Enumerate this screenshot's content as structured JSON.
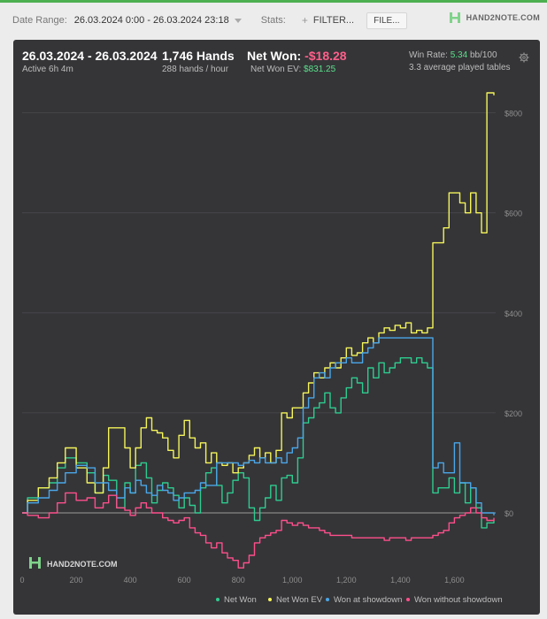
{
  "toolbar": {
    "date_label": "Date Range:",
    "date_value": "26.03.2024 0:00 - 26.03.2024 23:18",
    "stats_label": "Stats:",
    "filter_label": "FILTER...",
    "file_label": "FILE...",
    "brand_name": "HAND2NOTE.COM"
  },
  "summary": {
    "period": "26.03.2024 - 26.03.2024",
    "active": "Active 6h 4m",
    "hands": "1,746 Hands",
    "hands_rate": "288 hands / hour",
    "net_won_label": "Net Won:",
    "net_won_value": "-$18.28",
    "ev_label": "Net Won  EV:",
    "ev_value": "$831.25",
    "winrate_label": "Win Rate:",
    "winrate_value": "5.34",
    "winrate_unit": "bb/100",
    "tables": "3.3 average played tables"
  },
  "watermark": "HAND2NOTE.COM",
  "colors": {
    "accent": "#4caf50",
    "panel": "#353538",
    "net_won": "#2ecc8f",
    "net_won_ev": "#f4f45a",
    "showdown": "#4aa6e8",
    "non_showdown": "#ff4f8b",
    "negative": "#ff5f8a",
    "positive": "#5ae08a"
  },
  "chart_data": {
    "type": "line",
    "title": "",
    "xlabel": "",
    "ylabel": "",
    "xlim": [
      0,
      1746
    ],
    "ylim": [
      -115,
      840
    ],
    "x_ticks": [
      0,
      200,
      400,
      600,
      800,
      1000,
      1200,
      1400,
      1600
    ],
    "x_tick_labels": [
      "0",
      "200",
      "400",
      "600",
      "800",
      "1,000",
      "1,200",
      "1,400",
      "1,600"
    ],
    "y_ticks": [
      0,
      200,
      400,
      600,
      800
    ],
    "y_tick_labels": [
      "$0",
      "$200",
      "$400",
      "$600",
      "$800"
    ],
    "grid": true,
    "legend_position": "bottom",
    "series": [
      {
        "name": "Net Won",
        "color": "#2ecc8f",
        "x": [
          0,
          20,
          60,
          100,
          130,
          160,
          200,
          240,
          270,
          300,
          320,
          350,
          380,
          400,
          420,
          440,
          460,
          480,
          500,
          520,
          540,
          560,
          580,
          600,
          620,
          640,
          660,
          680,
          700,
          720,
          740,
          760,
          780,
          800,
          820,
          840,
          860,
          880,
          900,
          920,
          940,
          960,
          980,
          1000,
          1020,
          1040,
          1060,
          1080,
          1100,
          1120,
          1140,
          1160,
          1180,
          1200,
          1220,
          1240,
          1260,
          1280,
          1300,
          1320,
          1340,
          1360,
          1380,
          1400,
          1420,
          1440,
          1460,
          1480,
          1500,
          1520,
          1540,
          1560,
          1580,
          1600,
          1620,
          1640,
          1660,
          1680,
          1700,
          1720,
          1746
        ],
        "y": [
          0,
          30,
          50,
          60,
          90,
          110,
          100,
          80,
          40,
          75,
          65,
          10,
          60,
          40,
          95,
          100,
          70,
          20,
          45,
          60,
          50,
          35,
          10,
          30,
          15,
          0,
          50,
          80,
          90,
          55,
          20,
          40,
          65,
          80,
          70,
          10,
          -15,
          10,
          30,
          55,
          25,
          70,
          75,
          60,
          110,
          180,
          190,
          210,
          220,
          240,
          210,
          200,
          230,
          250,
          270,
          260,
          240,
          290,
          270,
          300,
          280,
          290,
          300,
          310,
          310,
          300,
          310,
          300,
          290,
          40,
          50,
          50,
          70,
          40,
          60,
          20,
          50,
          10,
          -30,
          -20,
          -15
        ]
      },
      {
        "name": "Net Won  EV",
        "color": "#f4f45a",
        "x": [
          0,
          20,
          60,
          100,
          130,
          160,
          200,
          240,
          270,
          300,
          320,
          350,
          380,
          400,
          420,
          440,
          460,
          480,
          500,
          520,
          540,
          560,
          580,
          600,
          620,
          640,
          660,
          680,
          700,
          720,
          740,
          760,
          780,
          800,
          820,
          840,
          860,
          880,
          900,
          920,
          940,
          960,
          980,
          1000,
          1020,
          1040,
          1060,
          1080,
          1100,
          1120,
          1140,
          1160,
          1180,
          1200,
          1220,
          1240,
          1260,
          1280,
          1300,
          1320,
          1340,
          1360,
          1380,
          1400,
          1420,
          1440,
          1460,
          1480,
          1500,
          1520,
          1540,
          1560,
          1580,
          1600,
          1620,
          1640,
          1660,
          1680,
          1700,
          1720,
          1746
        ],
        "y": [
          0,
          25,
          50,
          70,
          100,
          130,
          90,
          60,
          40,
          90,
          170,
          170,
          130,
          90,
          130,
          170,
          190,
          165,
          160,
          150,
          125,
          110,
          155,
          185,
          150,
          130,
          140,
          100,
          120,
          100,
          95,
          100,
          80,
          90,
          100,
          115,
          130,
          110,
          120,
          100,
          125,
          200,
          190,
          210,
          210,
          240,
          260,
          280,
          270,
          290,
          300,
          290,
          310,
          330,
          315,
          320,
          340,
          350,
          340,
          360,
          370,
          365,
          375,
          370,
          380,
          360,
          365,
          360,
          370,
          540,
          540,
          570,
          640,
          640,
          620,
          600,
          640,
          600,
          560,
          840,
          835
        ]
      },
      {
        "name": "Won at showdown",
        "color": "#4aa6e8",
        "x": [
          0,
          20,
          60,
          100,
          130,
          160,
          200,
          240,
          270,
          300,
          320,
          350,
          380,
          400,
          420,
          440,
          460,
          480,
          500,
          520,
          540,
          560,
          580,
          600,
          620,
          640,
          660,
          680,
          700,
          720,
          740,
          760,
          780,
          800,
          820,
          840,
          860,
          880,
          900,
          920,
          940,
          960,
          980,
          1000,
          1020,
          1040,
          1060,
          1080,
          1100,
          1120,
          1140,
          1160,
          1180,
          1200,
          1220,
          1240,
          1260,
          1280,
          1300,
          1320,
          1340,
          1360,
          1380,
          1400,
          1420,
          1440,
          1460,
          1480,
          1500,
          1520,
          1540,
          1560,
          1580,
          1600,
          1620,
          1640,
          1660,
          1680,
          1700,
          1720,
          1746
        ],
        "y": [
          0,
          20,
          30,
          45,
          60,
          80,
          95,
          90,
          60,
          60,
          45,
          30,
          50,
          40,
          65,
          55,
          40,
          35,
          55,
          45,
          40,
          25,
          30,
          40,
          40,
          45,
          60,
          55,
          55,
          100,
          100,
          100,
          100,
          95,
          100,
          105,
          100,
          110,
          100,
          100,
          110,
          100,
          120,
          130,
          150,
          210,
          230,
          270,
          280,
          270,
          290,
          300,
          300,
          310,
          300,
          300,
          320,
          330,
          340,
          350,
          350,
          350,
          350,
          350,
          350,
          350,
          350,
          350,
          350,
          90,
          100,
          80,
          80,
          140,
          60,
          60,
          50,
          20,
          0,
          0,
          -5
        ]
      },
      {
        "name": "Won without showdown",
        "color": "#ff4f8b",
        "x": [
          0,
          20,
          60,
          100,
          130,
          160,
          200,
          240,
          270,
          300,
          320,
          350,
          380,
          400,
          420,
          440,
          460,
          480,
          500,
          520,
          540,
          560,
          580,
          600,
          620,
          640,
          660,
          680,
          700,
          720,
          740,
          760,
          780,
          800,
          820,
          840,
          860,
          880,
          900,
          920,
          940,
          960,
          980,
          1000,
          1020,
          1040,
          1060,
          1080,
          1100,
          1120,
          1140,
          1160,
          1180,
          1200,
          1220,
          1240,
          1260,
          1280,
          1300,
          1320,
          1340,
          1360,
          1380,
          1400,
          1420,
          1440,
          1460,
          1480,
          1500,
          1520,
          1540,
          1560,
          1580,
          1600,
          1620,
          1640,
          1660,
          1680,
          1700,
          1720,
          1746
        ],
        "y": [
          0,
          -5,
          -10,
          0,
          20,
          40,
          25,
          30,
          10,
          20,
          35,
          10,
          5,
          -5,
          10,
          20,
          10,
          0,
          0,
          -10,
          -15,
          -20,
          -15,
          -10,
          -30,
          -40,
          -45,
          -60,
          -70,
          -60,
          -80,
          -90,
          -95,
          -110,
          -100,
          -85,
          -60,
          -50,
          -45,
          -40,
          -35,
          -15,
          -20,
          -25,
          -20,
          -25,
          -30,
          -30,
          -35,
          -40,
          -45,
          -45,
          -45,
          -45,
          -50,
          -50,
          -50,
          -50,
          -50,
          -50,
          -55,
          -50,
          -50,
          -50,
          -55,
          -50,
          -50,
          -50,
          -50,
          -45,
          -40,
          -35,
          -20,
          -10,
          -5,
          0,
          10,
          0,
          -10,
          -15,
          -10
        ]
      }
    ]
  }
}
